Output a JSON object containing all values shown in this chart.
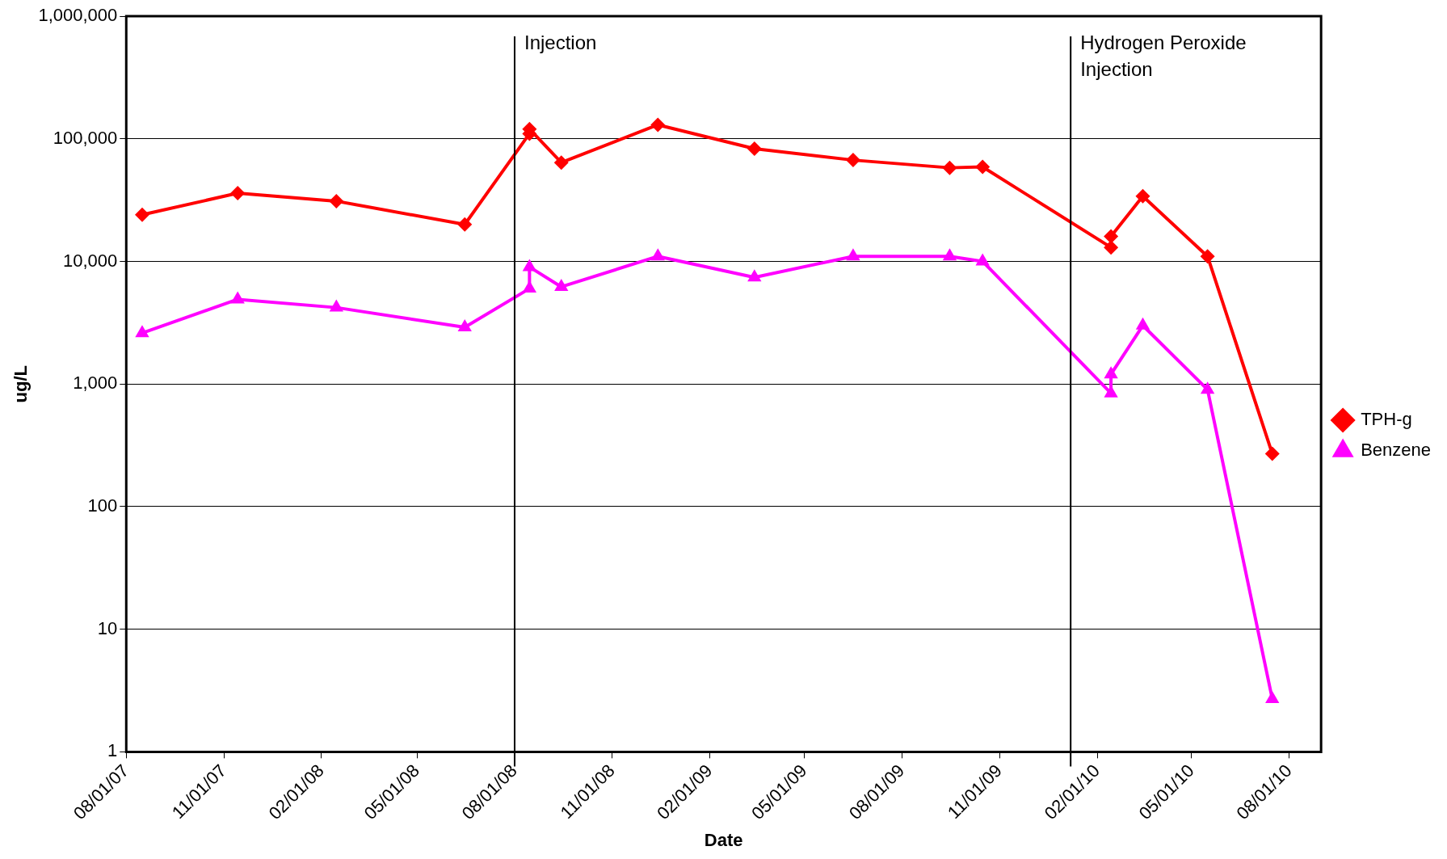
{
  "chart_data": {
    "type": "line",
    "xlabel": "Date",
    "ylabel": "ug/L",
    "log": "y",
    "grid": "y",
    "legend": "right",
    "line_style": "solid",
    "xlim": [
      "2007-08-01",
      "2010-08-31"
    ],
    "xticks": [
      {
        "value": "2007-08-01",
        "label": "08/01/07"
      },
      {
        "value": "2007-11-01",
        "label": "11/01/07"
      },
      {
        "value": "2008-02-01",
        "label": "02/01/08"
      },
      {
        "value": "2008-05-01",
        "label": "05/01/08"
      },
      {
        "value": "2008-08-01",
        "label": "08/01/08"
      },
      {
        "value": "2008-11-01",
        "label": "11/01/08"
      },
      {
        "value": "2009-02-01",
        "label": "02/01/09"
      },
      {
        "value": "2009-05-01",
        "label": "05/01/09"
      },
      {
        "value": "2009-08-01",
        "label": "08/01/09"
      },
      {
        "value": "2009-11-01",
        "label": "11/01/09"
      },
      {
        "value": "2010-02-01",
        "label": "02/01/10"
      },
      {
        "value": "2010-05-01",
        "label": "05/01/10"
      },
      {
        "value": "2010-08-01",
        "label": "08/01/10"
      }
    ],
    "ylim": [
      1,
      1000000
    ],
    "yticks": [
      {
        "value": 1,
        "label": "1"
      },
      {
        "value": 10,
        "label": "10"
      },
      {
        "value": 100,
        "label": "100"
      },
      {
        "value": 1000,
        "label": "1,000"
      },
      {
        "value": 10000,
        "label": "10,000"
      },
      {
        "value": 100000,
        "label": "100,000"
      },
      {
        "value": 1000000,
        "label": "1,000,000"
      }
    ],
    "ref_lines": [
      {
        "axis": "x",
        "value": "2008-08-01",
        "label": "Injection",
        "color": "#000000"
      },
      {
        "axis": "x",
        "value": "2010-01-07",
        "label": "Hydrogen Peroxide Injection",
        "color": "#000000"
      }
    ],
    "series": [
      {
        "name": "TPH-g",
        "color": "#ff0000",
        "marker": "diamond",
        "x": [
          "2007-08-16",
          "2007-11-14",
          "2008-02-15",
          "2008-06-15",
          "2008-08-15",
          "2008-08-15",
          "2008-09-14",
          "2008-12-14",
          "2009-03-15",
          "2009-06-16",
          "2009-09-15",
          "2009-10-16",
          "2010-02-14",
          "2010-02-14",
          "2010-03-16",
          "2010-05-16",
          "2010-07-16"
        ],
        "values": [
          24000,
          36000,
          31000,
          20000,
          110000,
          120000,
          64000,
          130000,
          83000,
          67000,
          58000,
          59000,
          13000,
          16000,
          34000,
          11000,
          270
        ]
      },
      {
        "name": "Benzene",
        "color": "#ff00ff",
        "marker": "triangle",
        "x": [
          "2007-08-16",
          "2007-11-14",
          "2008-02-15",
          "2008-06-15",
          "2008-08-15",
          "2008-08-15",
          "2008-09-14",
          "2008-12-14",
          "2009-03-15",
          "2009-06-16",
          "2009-09-15",
          "2009-10-16",
          "2010-02-14",
          "2010-02-14",
          "2010-03-16",
          "2010-05-16",
          "2010-07-16"
        ],
        "values": [
          2600,
          4900,
          4200,
          2900,
          6000,
          9000,
          6200,
          11000,
          7400,
          11000,
          11000,
          10000,
          840,
          1200,
          3000,
          900,
          2.7
        ]
      }
    ]
  }
}
